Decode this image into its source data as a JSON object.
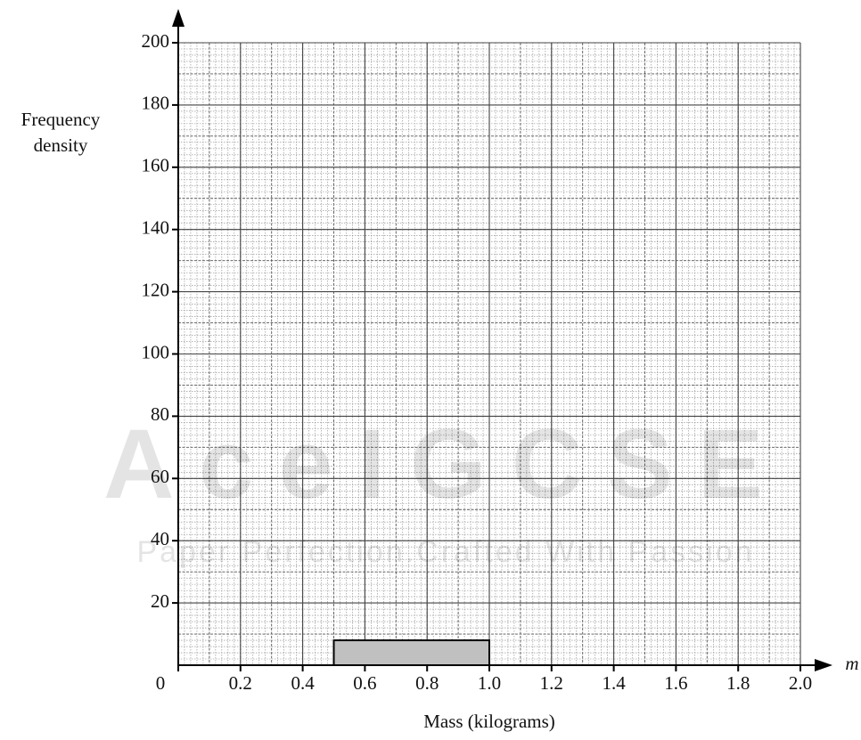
{
  "chart_data": {
    "type": "histogram",
    "ylabel": [
      "Frequency",
      "density"
    ],
    "xlabel": "Mass (kilograms)",
    "x_symbol": "m",
    "bins": [
      0.5,
      1.0
    ],
    "values": [
      8
    ],
    "color": "#c0c0c0",
    "xlim": [
      0,
      2
    ],
    "ylim": [
      0,
      200
    ],
    "xticks": [
      0,
      0.2,
      0.4,
      0.6,
      0.8,
      {
        "value": 1,
        "label": "1.0"
      },
      1.2,
      1.4,
      1.6,
      1.8,
      {
        "value": 2,
        "label": "2.0"
      }
    ],
    "yticks": [
      20,
      40,
      60,
      80,
      100,
      120,
      140,
      160,
      180,
      200
    ],
    "grid": true,
    "minor_divisions": 10,
    "watermark": [
      "AceIGCSE",
      "Paper Perfection.Crafted With Passion"
    ]
  }
}
